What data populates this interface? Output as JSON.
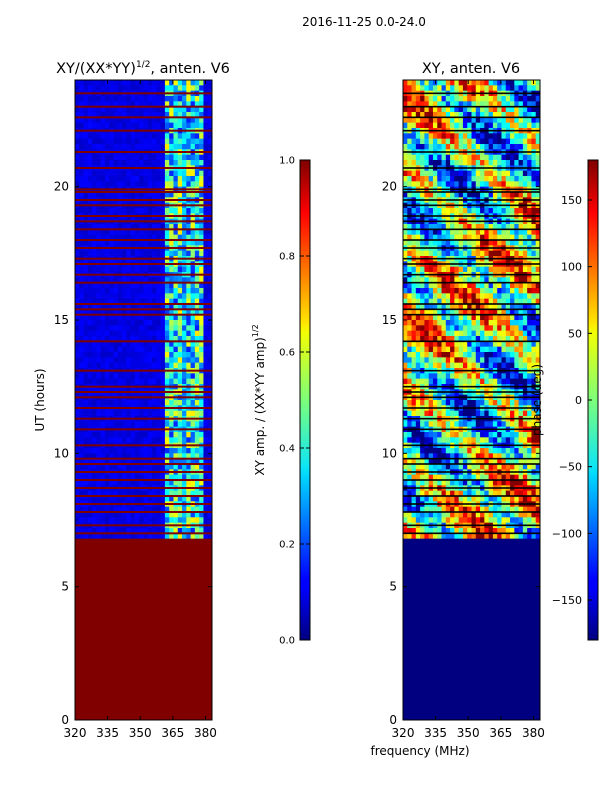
{
  "figure": {
    "suptitle": "2016-11-25 0.0-24.0",
    "xlabel_shared": "frequency (MHz)"
  },
  "chart_data": [
    {
      "type": "heatmap",
      "title_main": "XY/(XX*YY)",
      "title_sup": "1/2",
      "title_tail": ", anten. V6",
      "xlabel": "",
      "ylabel": "UT (hours)",
      "xlim": [
        320,
        383
      ],
      "ylim": [
        0,
        24
      ],
      "xticks": [
        320,
        335,
        350,
        365,
        380
      ],
      "yticks": [
        0,
        5,
        10,
        15,
        20
      ],
      "colormap": "jet",
      "colorbar": {
        "label": "XY amp. / (XX*YY amp)",
        "label_sup": "1/2",
        "range": [
          0.0,
          1.0
        ],
        "ticks": [
          "0.0",
          "0.2",
          "0.4",
          "0.6",
          "0.8",
          "1.0"
        ]
      },
      "description_values": {
        "no_data_hours": [
          0,
          6.8
        ],
        "no_data_value": 1.0,
        "background_value": 0.1,
        "bright_band_mhz": [
          362,
          380
        ],
        "bright_band_value": 0.45,
        "flagged_hours": [
          7.0,
          7.3,
          7.8,
          8.1,
          8.4,
          8.7,
          9.0,
          9.3,
          9.6,
          9.8,
          10.3,
          10.9,
          11.3,
          11.7,
          12.1,
          12.3,
          12.5,
          13.1,
          14.2,
          15.2,
          15.4,
          15.6,
          16.4,
          16.7,
          17.1,
          17.3,
          17.7,
          18.0,
          18.4,
          18.7,
          18.9,
          19.3,
          19.5,
          19.8,
          19.9,
          20.7,
          21.3,
          22.1,
          22.6,
          23.0,
          23.5
        ]
      }
    },
    {
      "type": "heatmap",
      "title_main": "XY, anten. V6",
      "xlabel": "frequency (MHz)",
      "ylabel": "",
      "xlim": [
        320,
        383
      ],
      "ylim": [
        0,
        24
      ],
      "xticks": [
        320,
        335,
        350,
        365,
        380
      ],
      "yticks": [
        0,
        5,
        10,
        15,
        20
      ],
      "colormap": "jet",
      "colorbar": {
        "label": "phase (deg)",
        "range": [
          -180,
          180
        ],
        "ticks": [
          "150",
          "100",
          "50",
          "0",
          "−50",
          "−100",
          "−150"
        ],
        "tick_values": [
          150,
          100,
          50,
          0,
          -50,
          -100,
          -150
        ]
      },
      "description_values": {
        "no_data_hours": [
          0,
          6.8
        ],
        "no_data_value": -180,
        "phase_range_deg": [
          -180,
          180
        ]
      }
    }
  ]
}
